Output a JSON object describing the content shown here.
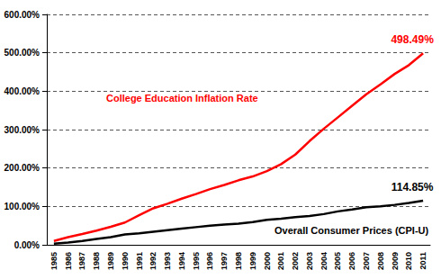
{
  "chart_data": {
    "type": "line",
    "categories": [
      "1985",
      "1986",
      "1987",
      "1988",
      "1989",
      "1990",
      "1991",
      "1992",
      "1993",
      "1994",
      "1995",
      "1996",
      "1997",
      "1998",
      "1999",
      "2000",
      "2001",
      "2002",
      "2003",
      "2004",
      "2005",
      "2006",
      "2007",
      "2008",
      "2009",
      "2010",
      "2011"
    ],
    "series": [
      {
        "name": "College Education Inflation Rate",
        "color": "#ff0000",
        "values": [
          10,
          20,
          28,
          37,
          47,
          58,
          77,
          95,
          107,
          120,
          132,
          145,
          156,
          168,
          178,
          192,
          210,
          235,
          270,
          302,
          332,
          362,
          392,
          418,
          445,
          468,
          498.49
        ],
        "value_labels": [
          null,
          null,
          null,
          null,
          null,
          null,
          null,
          null,
          null,
          null,
          null,
          null,
          null,
          null,
          null,
          null,
          null,
          null,
          null,
          null,
          null,
          null,
          null,
          null,
          null,
          null,
          "498.49%"
        ]
      },
      {
        "name": "Overall Consumer Prices (CPI-U)",
        "color": "#000000",
        "values": [
          3,
          6,
          10,
          15,
          20,
          27,
          30,
          34,
          38,
          42,
          46,
          50,
          53,
          55,
          59,
          65,
          68,
          72,
          75,
          80,
          87,
          92,
          98,
          100,
          104,
          109,
          114.85
        ],
        "value_labels": [
          null,
          null,
          null,
          null,
          null,
          null,
          null,
          null,
          null,
          null,
          null,
          null,
          null,
          null,
          null,
          null,
          null,
          null,
          null,
          null,
          null,
          null,
          null,
          null,
          null,
          null,
          "114.85%"
        ]
      }
    ],
    "ylim": [
      0,
      600
    ],
    "yticks": [
      {
        "value": 0,
        "label": "0.00%"
      },
      {
        "value": 100,
        "label": "100.00%"
      },
      {
        "value": 200,
        "label": "200.00%"
      },
      {
        "value": 300,
        "label": "300.00%"
      },
      {
        "value": 400,
        "label": "400.00%"
      },
      {
        "value": 500,
        "label": "500.00%"
      },
      {
        "value": 600,
        "label": "600.00%"
      }
    ],
    "grid": true
  }
}
